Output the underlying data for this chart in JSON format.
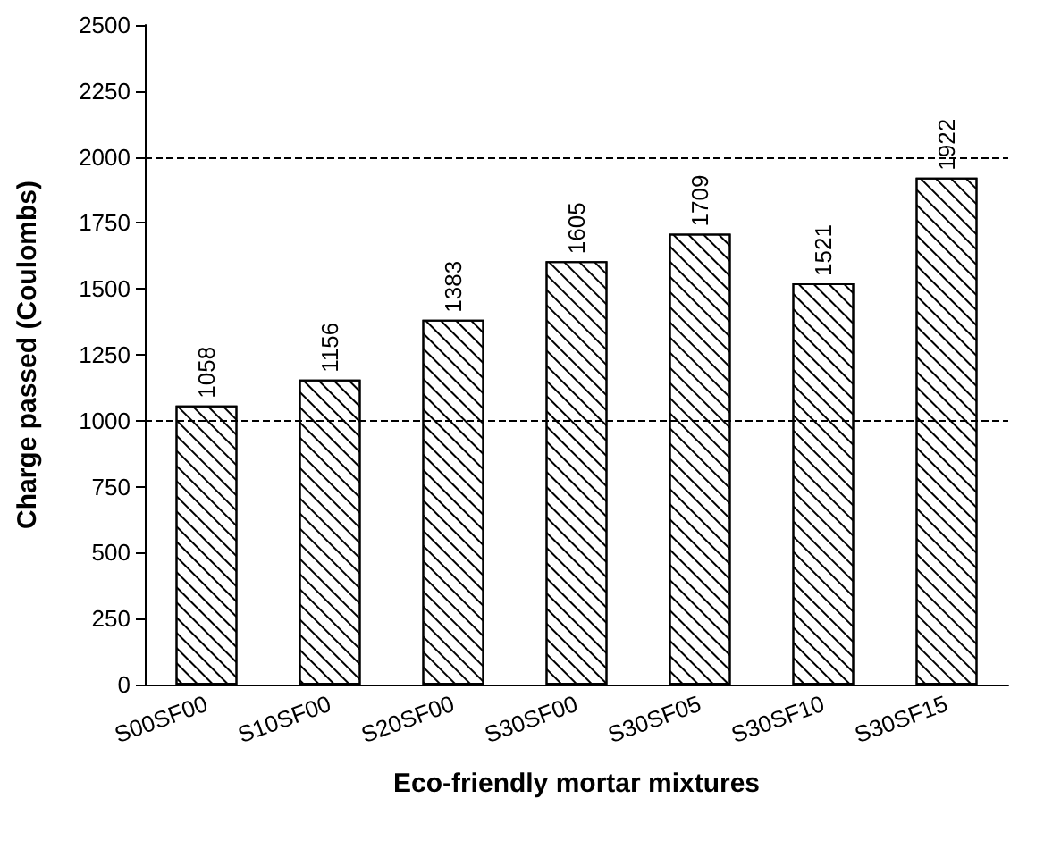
{
  "chart_data": {
    "type": "bar",
    "xlabel": "Eco-friendly mortar mixtures",
    "ylabel": "Charge passed (Coulombs)",
    "categories": [
      "S00SF00",
      "S10SF00",
      "S20SF00",
      "S30SF00",
      "S30SF05",
      "S30SF10",
      "S30SF15"
    ],
    "values": [
      1058,
      1156,
      1383,
      1605,
      1709,
      1521,
      1922
    ],
    "color": "#000000",
    "ylim": [
      0,
      2500
    ],
    "yticks": [
      0,
      250,
      500,
      750,
      1000,
      1250,
      1500,
      1750,
      2000,
      2250,
      2500
    ],
    "data_labels": true,
    "ref_lines": [
      {
        "axis": "y",
        "value": 1000,
        "color": "#000000",
        "line_style": "dashed"
      },
      {
        "axis": "y",
        "value": 2000,
        "color": "#000000",
        "line_style": "dashed"
      }
    ]
  }
}
